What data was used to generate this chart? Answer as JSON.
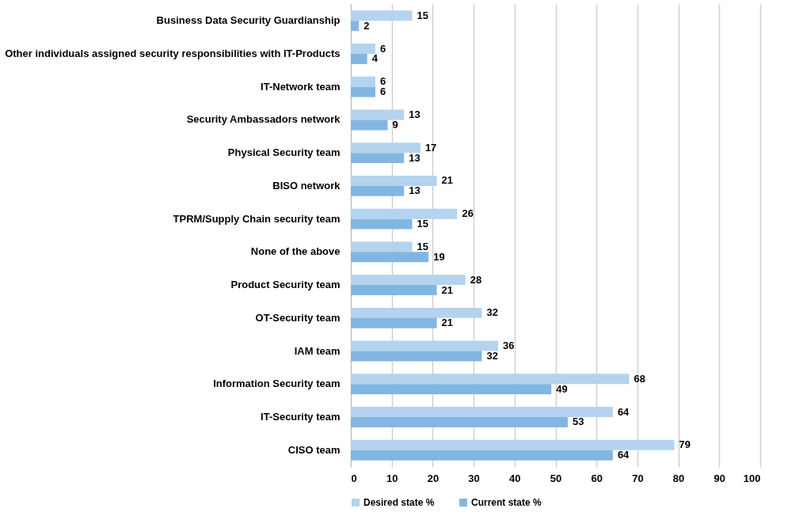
{
  "chart_data": {
    "type": "bar",
    "orientation": "horizontal",
    "categories": [
      "Business Data Security Guardianship",
      "Other individuals assigned security responsibilities with IT-Products",
      "IT-Network team",
      "Security Ambassadors network",
      "Physical Security team",
      "BISO network",
      "TPRM/Supply Chain security team",
      "None of the above",
      "Product Security team",
      "OT-Security team",
      "IAM team",
      "Information Security team",
      "IT-Security team",
      "CISO team"
    ],
    "series": [
      {
        "name": "Desired state %",
        "color": "#b4d3ef",
        "values": [
          15,
          6,
          6,
          13,
          17,
          21,
          26,
          15,
          28,
          32,
          36,
          68,
          64,
          79
        ]
      },
      {
        "name": "Current state %",
        "color": "#82b6e2",
        "values": [
          2,
          4,
          6,
          9,
          13,
          13,
          15,
          19,
          21,
          21,
          32,
          49,
          53,
          64
        ]
      }
    ],
    "xlim": [
      0,
      100
    ],
    "xticks": [
      0,
      10,
      20,
      30,
      40,
      50,
      60,
      70,
      80,
      90,
      100
    ],
    "grid": "x",
    "legend": "bottom",
    "data_labels": true
  }
}
